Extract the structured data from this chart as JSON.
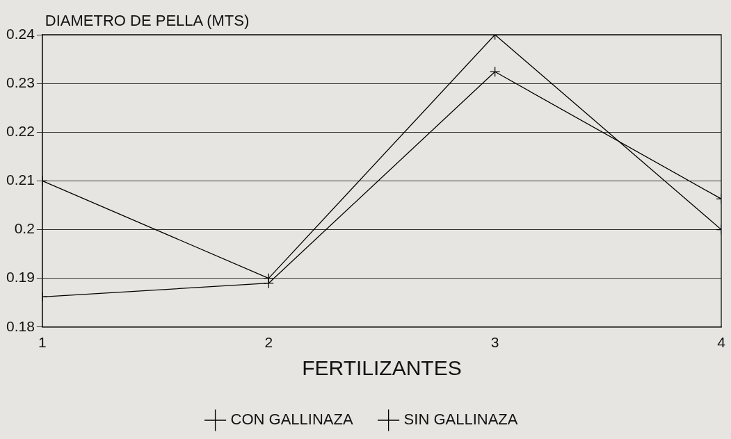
{
  "chart_data": {
    "type": "line",
    "ylabel": "DIAMETRO DE PELLA (MTS)",
    "xlabel": "FERTILIZANTES",
    "x": [
      1,
      2,
      3,
      4
    ],
    "xlim": [
      1,
      4
    ],
    "xticks": [
      1,
      2,
      3,
      4
    ],
    "ylim": [
      0.18,
      0.24
    ],
    "yticks": [
      0.18,
      0.19,
      0.2,
      0.21,
      0.22,
      0.23,
      0.24
    ],
    "grid": "y",
    "legend": "bottom",
    "line_style": "solid",
    "marker": "cross",
    "series": [
      {
        "name": "CON GALLINAZA",
        "color": "#000000",
        "values": [
          0.21,
          0.19,
          0.24,
          0.2
        ]
      },
      {
        "name": "SIN GALLINAZA",
        "color": "#000000",
        "values": [
          0.1862,
          0.189,
          0.2324,
          0.2063
        ]
      }
    ]
  }
}
